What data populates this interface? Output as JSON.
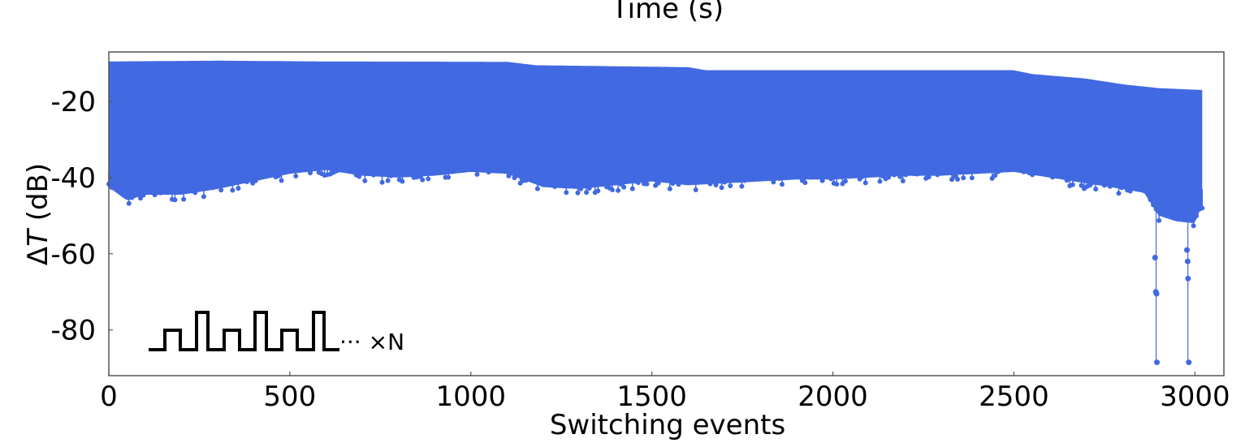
{
  "chart_data": {
    "type": "scatter",
    "top_axis_label": "Time (s)",
    "xlabel": "Switching events",
    "ylabel": "ΔT (dB)",
    "ylabel_symbol": "T",
    "ylabel_unit": " (dB)",
    "xlim": [
      0,
      3080
    ],
    "ylim": [
      -92,
      -7
    ],
    "xticks": [
      0,
      500,
      1000,
      1500,
      2000,
      2500,
      3000
    ],
    "yticks": [
      -20,
      -40,
      -60,
      -80
    ],
    "x_tick_labels": [
      "0",
      "500",
      "1000",
      "1500",
      "2000",
      "2500",
      "3000"
    ],
    "y_tick_labels": [
      "-20",
      "-40",
      "-60",
      "-80"
    ],
    "series_color": "#4169e1",
    "grid": false,
    "series": [
      {
        "x_range": [
          0,
          3020
        ],
        "upper_envelope": {
          "x": [
            0,
            300,
            600,
            1100,
            1180,
            1600,
            1650,
            2000,
            2500,
            2550,
            2700,
            2800,
            2900,
            3020
          ],
          "y": [
            -9.5,
            -9.3,
            -9.5,
            -9.6,
            -10.5,
            -11.0,
            -11.8,
            -11.8,
            -11.8,
            -12.8,
            -14.0,
            -15.5,
            -16.5,
            -17.0
          ]
        },
        "lower_envelope": {
          "x": [
            0,
            50,
            100,
            200,
            300,
            400,
            500,
            600,
            700,
            800,
            900,
            1000,
            1100,
            1200,
            1300,
            1400,
            1500,
            1600,
            1700,
            1800,
            1900,
            2000,
            2100,
            2200,
            2300,
            2400,
            2500,
            2600,
            2700,
            2800,
            2860,
            2900,
            2950,
            3000,
            3020
          ],
          "y": [
            -42.5,
            -46.0,
            -44.5,
            -44.5,
            -43.0,
            -41.0,
            -39.0,
            -38.0,
            -39.5,
            -40.0,
            -39.5,
            -38.5,
            -39.0,
            -42.5,
            -43.0,
            -42.0,
            -41.0,
            -42.0,
            -41.5,
            -41.0,
            -40.5,
            -40.5,
            -40.0,
            -39.5,
            -39.5,
            -39.0,
            -38.5,
            -40.0,
            -41.5,
            -43.0,
            -44.0,
            -50.0,
            -51.5,
            -52.0,
            -47.0
          ]
        },
        "outliers": [
          {
            "x": 2890,
            "y": -61.0
          },
          {
            "x": 2892,
            "y": -70.0
          },
          {
            "x": 2894,
            "y": -70.5
          },
          {
            "x": 2895,
            "y": -88.5
          },
          {
            "x": 2978,
            "y": -59.0
          },
          {
            "x": 2980,
            "y": -62.0
          },
          {
            "x": 2981,
            "y": -66.5
          },
          {
            "x": 2983,
            "y": -88.5
          }
        ]
      }
    ]
  },
  "inset": {
    "icon": "pulse-train-icon",
    "continuation": "··· ×N"
  }
}
